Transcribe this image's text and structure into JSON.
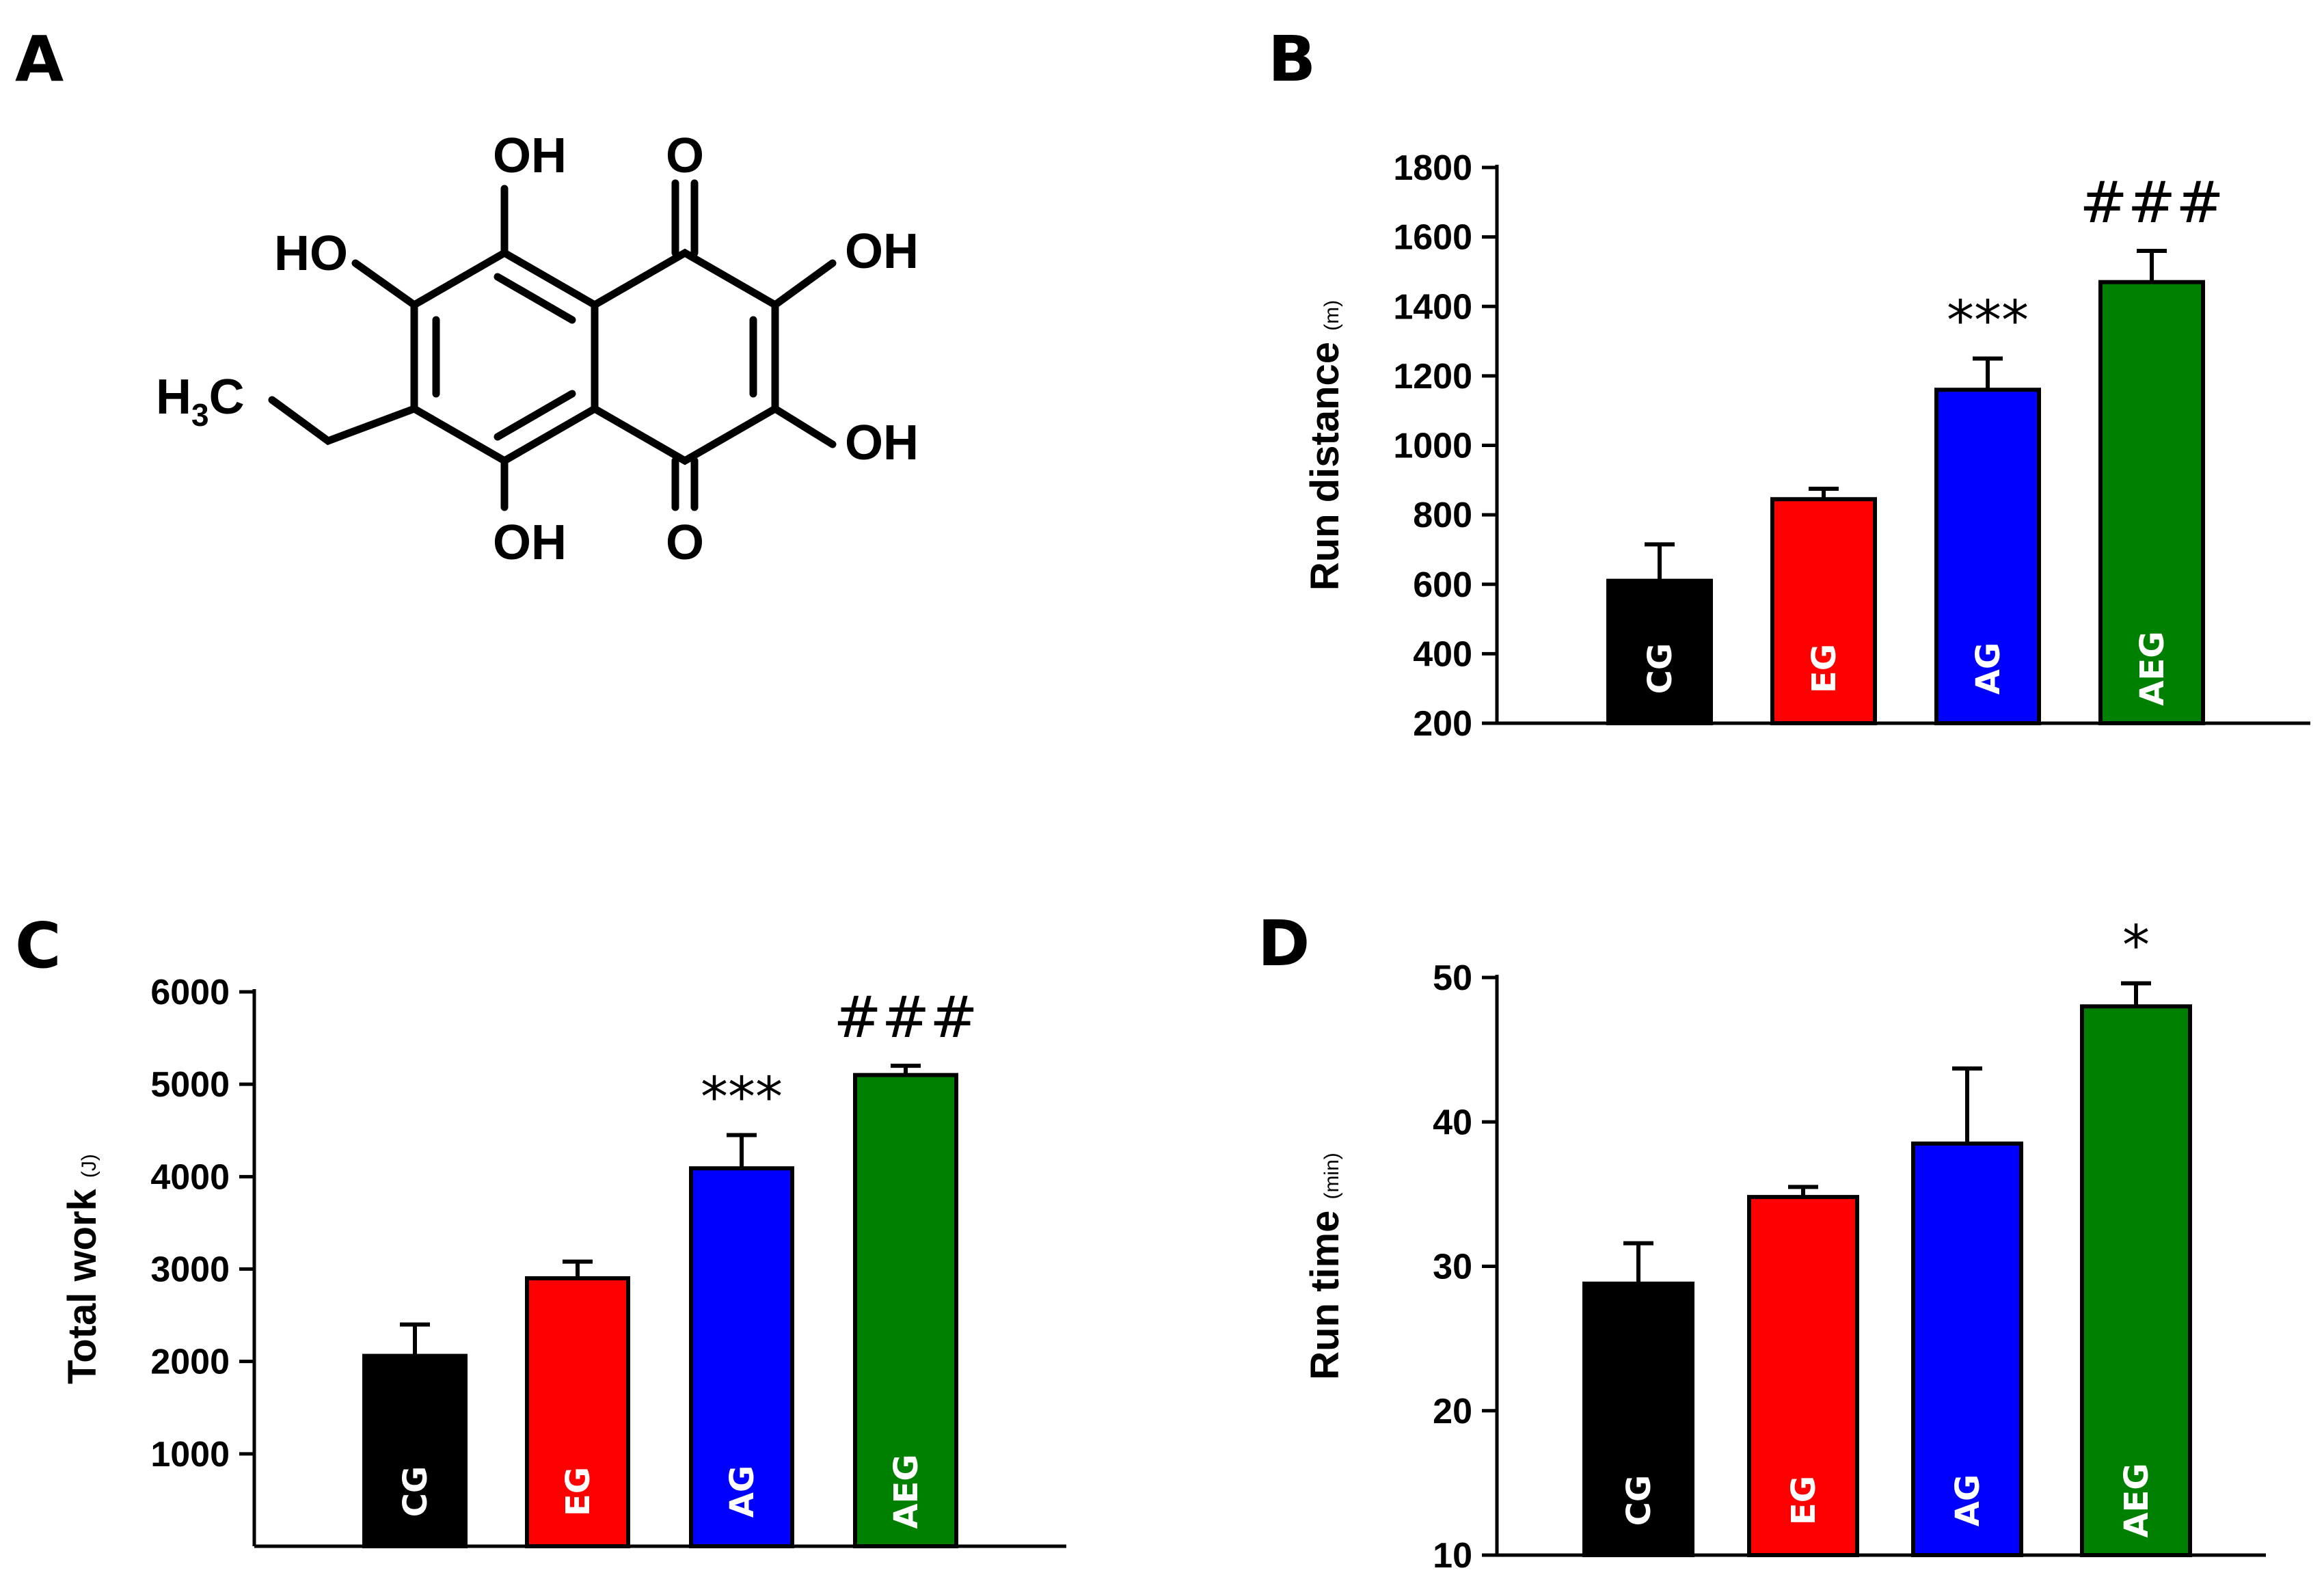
{
  "panels": {
    "a": {
      "label": "A"
    },
    "b": {
      "label": "B"
    },
    "c": {
      "label": "C"
    },
    "d": {
      "label": "D"
    }
  },
  "molecule": {
    "atoms": {
      "oh_top": "OH",
      "o_top": "O",
      "ho_left": "HO",
      "oh_right_top": "OH",
      "h": "H",
      "sub3": "3",
      "c": "C",
      "oh_right_bottom": "OH",
      "oh_bottom": "OH",
      "o_bottom": "O"
    }
  },
  "colors": {
    "CG": "#000000",
    "EG": "#ff0000",
    "AG": "#0000ff",
    "AEG": "#008000"
  },
  "chart_data": [
    {
      "id": "b",
      "type": "bar",
      "title": "",
      "ylabel": "Run distance",
      "ylabel_unit": "(m)",
      "ylim": [
        200,
        1800
      ],
      "yticks": [
        200,
        400,
        600,
        800,
        1000,
        1200,
        1400,
        1600,
        1800
      ],
      "tick_labels": [
        "200",
        "400",
        "600",
        "800",
        "1000",
        "1200",
        "1400",
        "1600",
        "1800"
      ],
      "categories": [
        "CG",
        "EG",
        "AG",
        "AEG"
      ],
      "values": [
        610,
        845,
        1160,
        1470
      ],
      "errors": [
        105,
        30,
        90,
        90
      ],
      "annotations": [
        "",
        "",
        "***",
        "###"
      ]
    },
    {
      "id": "c",
      "type": "bar",
      "title": "",
      "ylabel": "Total work",
      "ylabel_unit": "(J)",
      "ylim": [
        0,
        6000
      ],
      "yticks": [
        1000,
        2000,
        3000,
        4000,
        5000,
        6000
      ],
      "tick_labels": [
        "1000",
        "2000",
        "3000",
        "4000",
        "5000",
        "6000"
      ],
      "categories": [
        "CG",
        "EG",
        "AG",
        "AEG"
      ],
      "values": [
        2060,
        2900,
        4090,
        5100
      ],
      "errors": [
        340,
        180,
        360,
        100
      ],
      "annotations": [
        "",
        "",
        "***",
        "###"
      ]
    },
    {
      "id": "d",
      "type": "bar",
      "title": "",
      "ylabel": "Run time",
      "ylabel_unit": "(min)",
      "ylim": [
        10,
        50
      ],
      "yticks": [
        10,
        20,
        30,
        40,
        50
      ],
      "tick_labels": [
        "10",
        "20",
        "30",
        "40",
        "50"
      ],
      "categories": [
        "CG",
        "EG",
        "AG",
        "AEG"
      ],
      "values": [
        28.8,
        34.8,
        38.5,
        48
      ],
      "errors": [
        2.8,
        0.7,
        5.2,
        1.6
      ],
      "annotations": [
        "",
        "",
        "",
        "*"
      ]
    }
  ]
}
